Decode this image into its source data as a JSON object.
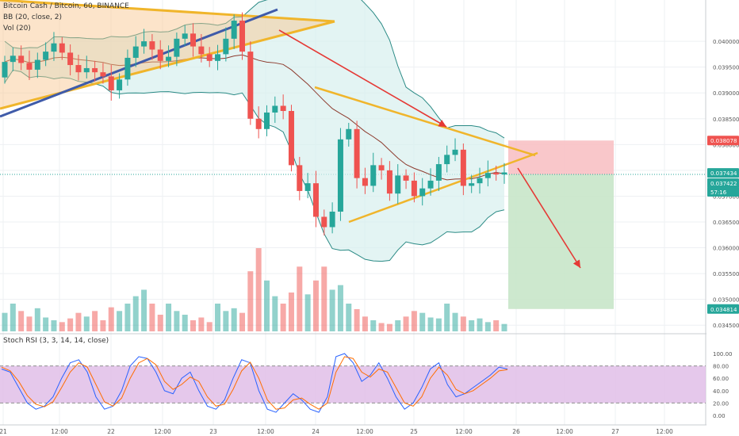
{
  "legend": {
    "symbol": "Bitcoin Cash / Bitcoin, 60, BINANCE",
    "bb": "BB (20, close, 2)",
    "vol": "Vol (20)",
    "stoch": "Stoch RSI (3, 3, 14, 14, close)"
  },
  "colors": {
    "up": "#26a69a",
    "down": "#ef5350",
    "trendline": "#f0b52b",
    "blueline": "#3f5ba9",
    "arrow": "#e53935",
    "bbfill": "#d7efee",
    "bbline": "#2a8a85",
    "stoch_k": "#2962ff",
    "stoch_d": "#ff6d00",
    "stoch_band": "#e1bee7",
    "stop_zone": "#f8c1c4",
    "target_zone": "#c8e6c9"
  },
  "axis": {
    "price_ticks": [
      "0.040000",
      "0.039500",
      "0.039000",
      "0.038500",
      "0.038000",
      "0.037500",
      "0.037000",
      "0.036500",
      "0.036000",
      "0.035500",
      "0.035000",
      "0.034500"
    ],
    "stoch_ticks": [
      "100.00",
      "80.00",
      "60.00",
      "40.00",
      "20.00",
      "0.00"
    ],
    "x_labels": [
      "21",
      "12:00",
      "22",
      "12:00",
      "23",
      "12:00",
      "24",
      "12:00",
      "25",
      "12:00",
      "26",
      "12:00",
      "27",
      "12:00"
    ],
    "price_tags": [
      {
        "text": "0.038078",
        "kind": "stop"
      },
      {
        "text": "0.037434",
        "kind": "last"
      },
      {
        "text": "0.037422",
        "kind": "entry"
      },
      {
        "text": "57:16",
        "kind": "countdown"
      },
      {
        "text": "0.034814",
        "kind": "target"
      }
    ]
  },
  "chart_data": [
    {
      "type": "candlestick",
      "title": "Bitcoin Cash / Bitcoin, 60, BINANCE",
      "ylim": [
        0.03435,
        0.0408
      ],
      "x_range": [
        "21 00:00",
        "27 12:00"
      ],
      "approx_closes": [
        0.0396,
        0.03972,
        0.03958,
        0.03945,
        0.03964,
        0.0398,
        0.03996,
        0.03978,
        0.03954,
        0.0394,
        0.03948,
        0.0394,
        0.03932,
        0.03905,
        0.03926,
        0.03968,
        0.0399,
        0.04,
        0.03984,
        0.03962,
        0.0397,
        0.04005,
        0.04015,
        0.0399,
        0.03975,
        0.03962,
        0.03975,
        0.04005,
        0.0404,
        0.0398,
        0.0385,
        0.0383,
        0.03862,
        0.03875,
        0.03865,
        0.0376,
        0.0371,
        0.03725,
        0.0366,
        0.0364,
        0.0367,
        0.0381,
        0.0383,
        0.03735,
        0.0372,
        0.0376,
        0.0375,
        0.03705,
        0.0374,
        0.0373,
        0.037,
        0.03715,
        0.0373,
        0.03762,
        0.0378,
        0.0379,
        0.0372,
        0.03725,
        0.03735,
        0.03745,
        0.03742,
        0.03746
      ],
      "bollinger": {
        "period": 20,
        "stddev": 2
      },
      "trade_setup": {
        "entry": 0.037422,
        "stop": 0.038078,
        "target": 0.034814,
        "last": 0.037434
      }
    },
    {
      "type": "bar",
      "title": "Vol (20)",
      "values": [
        20,
        30,
        22,
        16,
        25,
        15,
        12,
        10,
        14,
        20,
        16,
        22,
        12,
        26,
        22,
        30,
        38,
        45,
        30,
        18,
        30,
        22,
        18,
        12,
        15,
        10,
        30,
        22,
        25,
        20,
        65,
        90,
        55,
        38,
        30,
        42,
        70,
        40,
        55,
        70,
        45,
        50,
        30,
        24,
        16,
        12,
        9,
        8,
        12,
        16,
        22,
        20,
        15,
        14,
        30,
        20,
        16,
        12,
        14,
        10,
        12,
        8
      ]
    },
    {
      "type": "line",
      "title": "Stoch RSI (3, 3, 14, 14, close)",
      "ylim": [
        0,
        100
      ],
      "bands": [
        20,
        80
      ],
      "series": [
        {
          "name": "K",
          "values": [
            75,
            70,
            45,
            20,
            10,
            15,
            30,
            60,
            85,
            90,
            70,
            30,
            10,
            15,
            40,
            80,
            95,
            92,
            70,
            40,
            35,
            60,
            70,
            40,
            15,
            10,
            25,
            60,
            90,
            85,
            40,
            10,
            5,
            20,
            35,
            25,
            10,
            5,
            30,
            95,
            100,
            85,
            55,
            65,
            85,
            60,
            30,
            10,
            20,
            45,
            75,
            85,
            50,
            30,
            35,
            45,
            55,
            65,
            78,
            75
          ]
        },
        {
          "name": "D",
          "values": [
            78,
            72,
            55,
            32,
            18,
            14,
            22,
            45,
            70,
            85,
            78,
            50,
            22,
            15,
            28,
            60,
            85,
            92,
            82,
            55,
            42,
            50,
            62,
            55,
            30,
            15,
            18,
            42,
            72,
            86,
            60,
            25,
            10,
            12,
            25,
            28,
            18,
            10,
            20,
            70,
            95,
            92,
            70,
            62,
            75,
            70,
            45,
            20,
            15,
            30,
            60,
            78,
            65,
            42,
            35,
            40,
            50,
            60,
            72,
            74
          ]
        }
      ]
    }
  ]
}
